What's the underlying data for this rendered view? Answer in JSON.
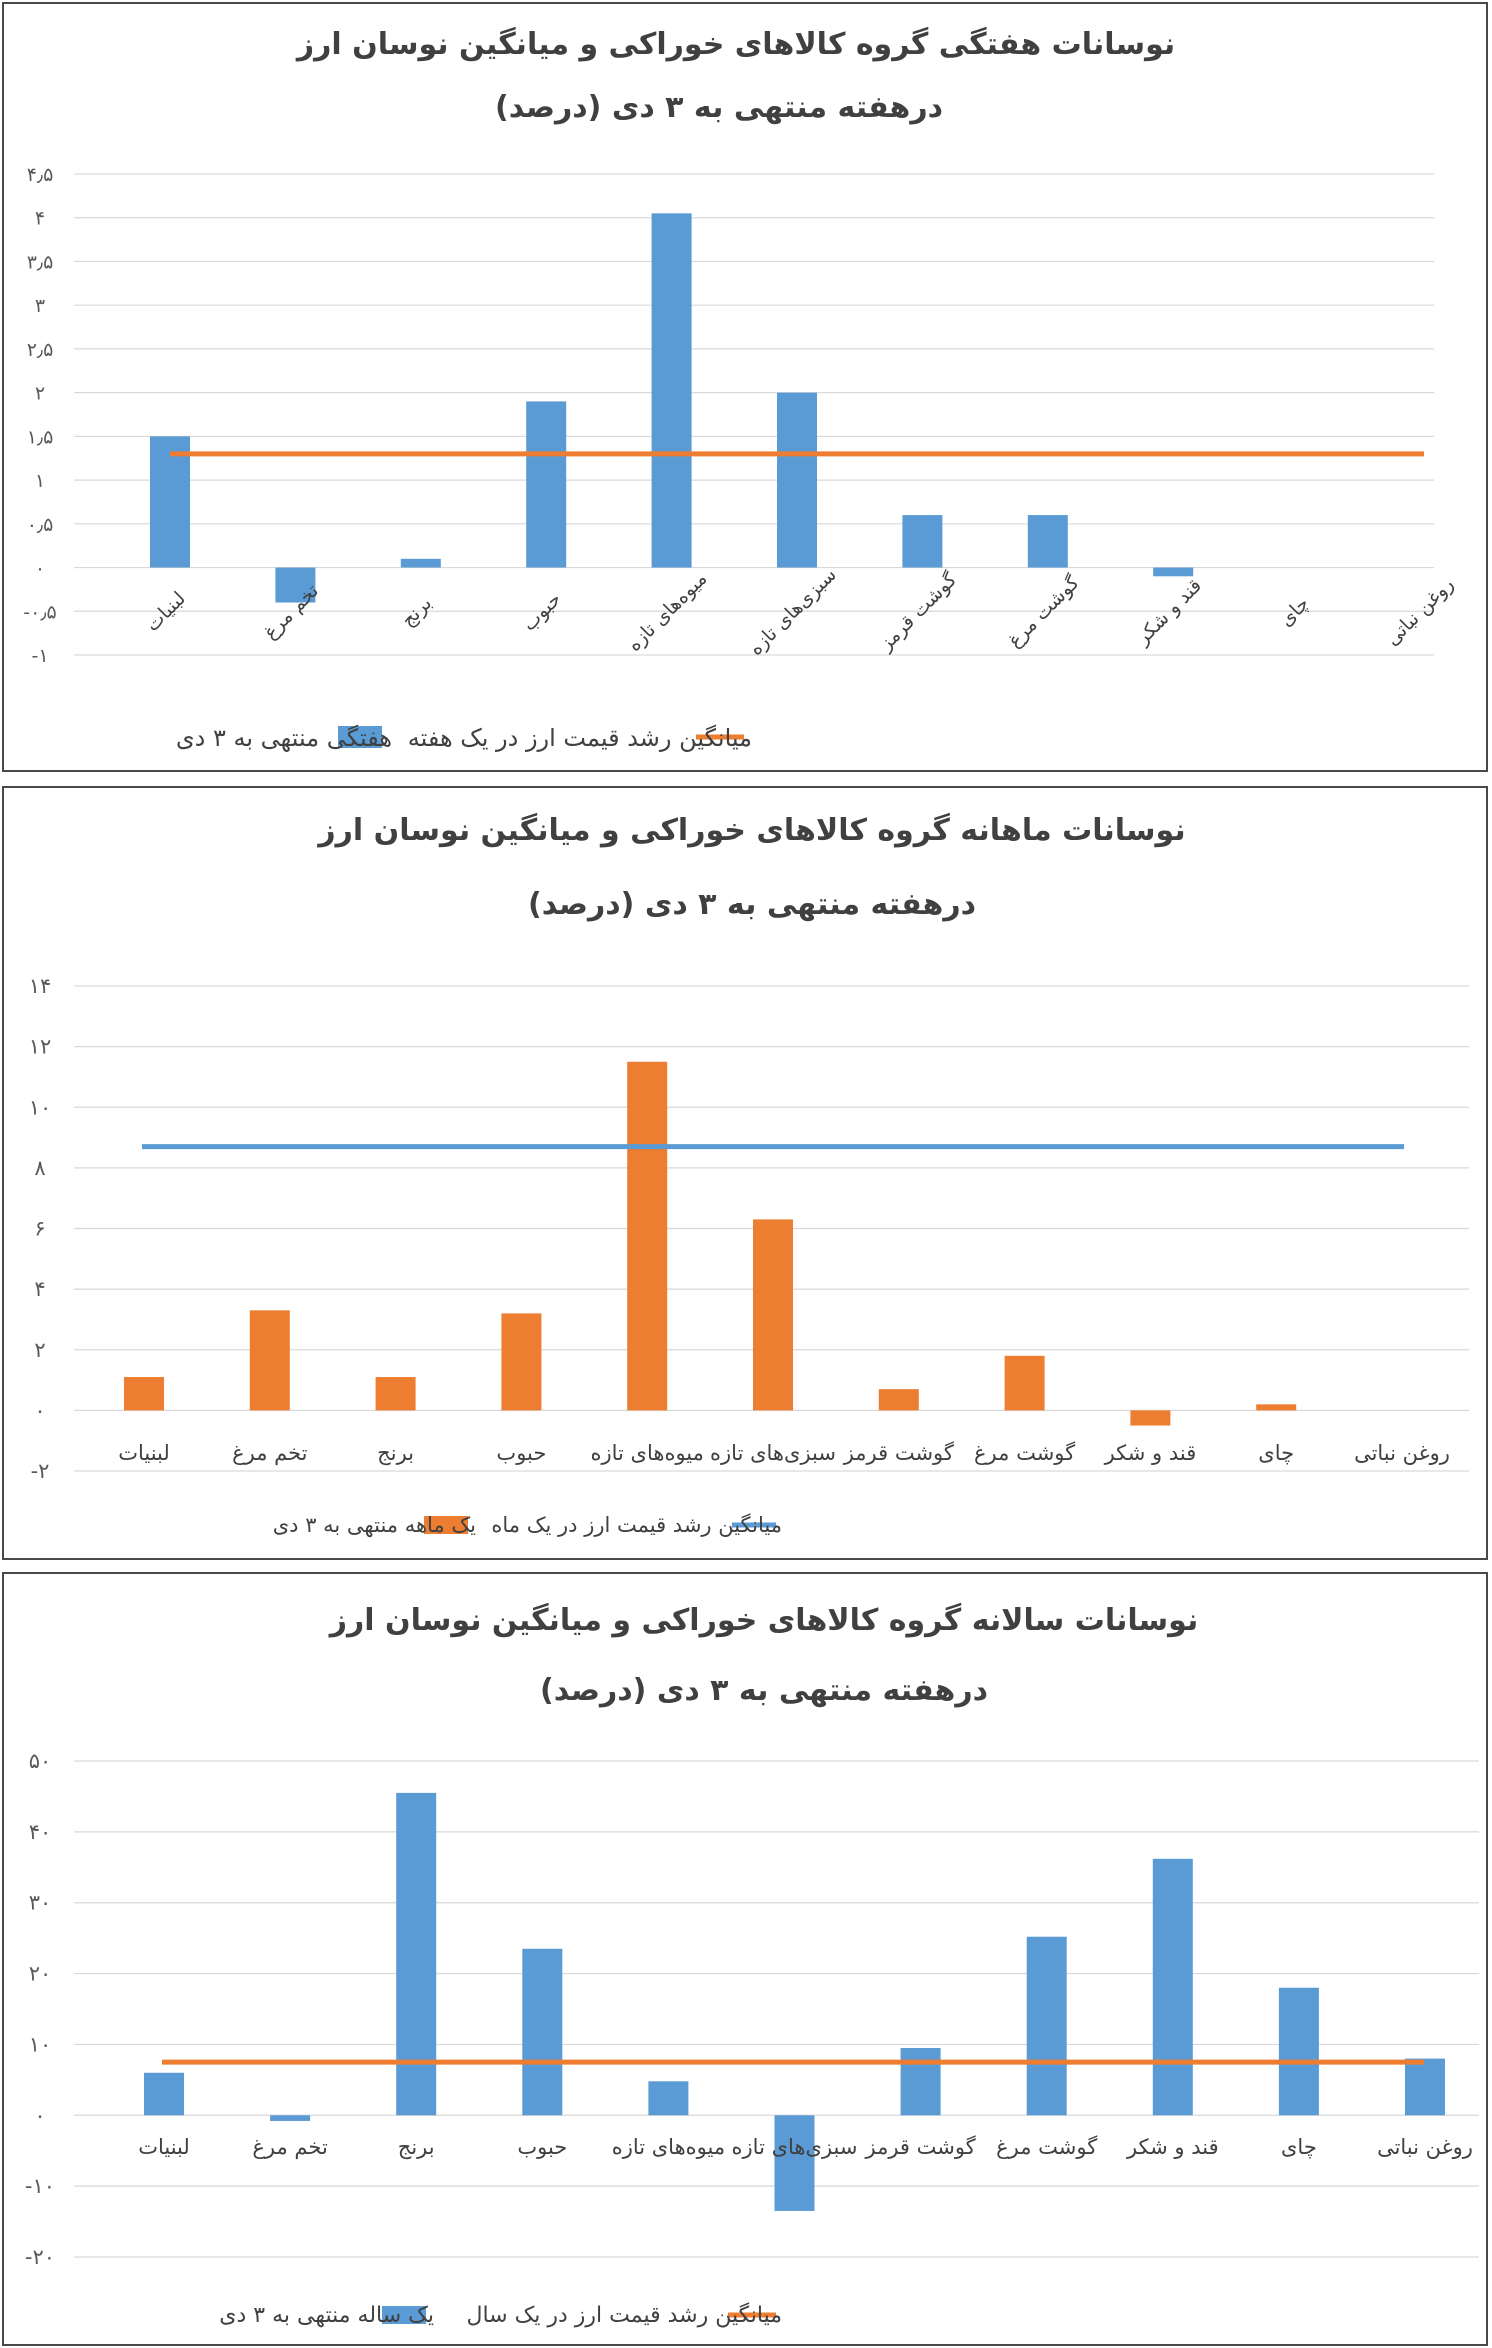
{
  "categories": [
    "لبنیات",
    "تخم مرغ",
    "برنج",
    "حبوب",
    "میوه‌های تازه",
    "سبزی‌های تازه",
    "گوشت قرمز",
    "گوشت مرغ",
    "قند و شکر",
    "چای",
    "روغن نباتی"
  ],
  "colors": {
    "blue": "#5b9bd5",
    "orange": "#ed7d31",
    "grid": "#d9d9d9",
    "text": "#404040"
  },
  "chart_data": [
    {
      "type": "bar",
      "title": "نوسانات هفتگی گروه کالاهای خوراکی  و میانگین نوسان ارز",
      "subtitle": "درهفته منتهی به ۳ دی (درصد)",
      "categories": [
        "لبنیات",
        "تخم مرغ",
        "برنج",
        "حبوب",
        "میوه‌های تازه",
        "سبزی‌های تازه",
        "گوشت قرمز",
        "گوشت مرغ",
        "قند و شکر",
        "چای",
        "روغن نباتی"
      ],
      "series": [
        {
          "name": "هفتگی منتهی به ۳ دی",
          "type": "bar",
          "color": "#5b9bd5",
          "values": [
            1.5,
            -0.4,
            0.1,
            1.9,
            4.05,
            2.0,
            0.6,
            0.6,
            -0.1,
            0,
            0
          ]
        },
        {
          "name": "میانگین رشد  قیمت ارز در یک هفته",
          "type": "line",
          "color": "#ed7d31",
          "value": 1.3
        }
      ],
      "ylim": [
        -1,
        4.5
      ],
      "yticks": [
        -1,
        -0.5,
        0,
        0.5,
        1,
        1.5,
        2,
        2.5,
        3,
        3.5,
        4,
        4.5
      ],
      "ytick_labels": [
        "-۱",
        "-۰٫۵",
        "۰",
        "۰٫۵",
        "۱",
        "۱٫۵",
        "۲",
        "۲٫۵",
        "۳",
        "۳٫۵",
        "۴",
        "۴٫۵"
      ],
      "grid": true,
      "rotated_labels": true,
      "legend_position": "bottom"
    },
    {
      "type": "bar",
      "title": "نوسانات ماهانه گروه کالاهای خوراکی  و میانگین نوسان ارز",
      "subtitle": "درهفته منتهی به ۳ دی (درصد)",
      "categories": [
        "لبنیات",
        "تخم مرغ",
        "برنج",
        "حبوب",
        "میوه‌های تازه",
        "سبزی‌های تازه",
        "گوشت قرمز",
        "گوشت مرغ",
        "قند و شکر",
        "چای",
        "روغن نباتی"
      ],
      "series": [
        {
          "name": "یک ماهه منتهی به ۳ دی",
          "type": "bar",
          "color": "#ed7d31",
          "values": [
            1.1,
            3.3,
            1.1,
            3.2,
            11.5,
            6.3,
            0.7,
            1.8,
            -0.5,
            0.2,
            0
          ]
        },
        {
          "name": "میانگین رشد  قیمت ارز در یک ماه",
          "type": "line",
          "color": "#5b9bd5",
          "value": 8.7
        }
      ],
      "ylim": [
        -2,
        14
      ],
      "yticks": [
        -2,
        0,
        2,
        4,
        6,
        8,
        10,
        12,
        14
      ],
      "ytick_labels": [
        "-۲",
        "۰",
        "۲",
        "۴",
        "۶",
        "۸",
        "۱۰",
        "۱۲",
        "۱۴"
      ],
      "grid": true,
      "rotated_labels": false,
      "legend_position": "bottom"
    },
    {
      "type": "bar",
      "title": "نوسانات سالانه گروه کالاهای خوراکی  و میانگین نوسان ارز",
      "subtitle": "درهفته منتهی به ۳ دی (درصد)",
      "categories": [
        "لبنیات",
        "تخم مرغ",
        "برنج",
        "حبوب",
        "میوه‌های تازه",
        "سبزی‌های تازه",
        "گوشت قرمز",
        "گوشت مرغ",
        "قند و شکر",
        "چای",
        "روغن نباتی"
      ],
      "series": [
        {
          "name": "یک ساله منتهی به ۳ دی",
          "type": "bar",
          "color": "#5b9bd5",
          "values": [
            6,
            -0.8,
            45.5,
            23.5,
            4.8,
            -13.5,
            9.5,
            25.2,
            36.2,
            18,
            8
          ]
        },
        {
          "name": "میانگین رشد  قیمت ارز در یک سال",
          "type": "line",
          "color": "#ed7d31",
          "value": 7.5
        }
      ],
      "ylim": [
        -20,
        50
      ],
      "yticks": [
        -20,
        -10,
        0,
        10,
        20,
        30,
        40,
        50
      ],
      "ytick_labels": [
        "-۲۰",
        "-۱۰",
        "۰",
        "۱۰",
        "۲۰",
        "۳۰",
        "۴۰",
        "۵۰"
      ],
      "grid": true,
      "rotated_labels": false,
      "legend_position": "bottom"
    }
  ]
}
